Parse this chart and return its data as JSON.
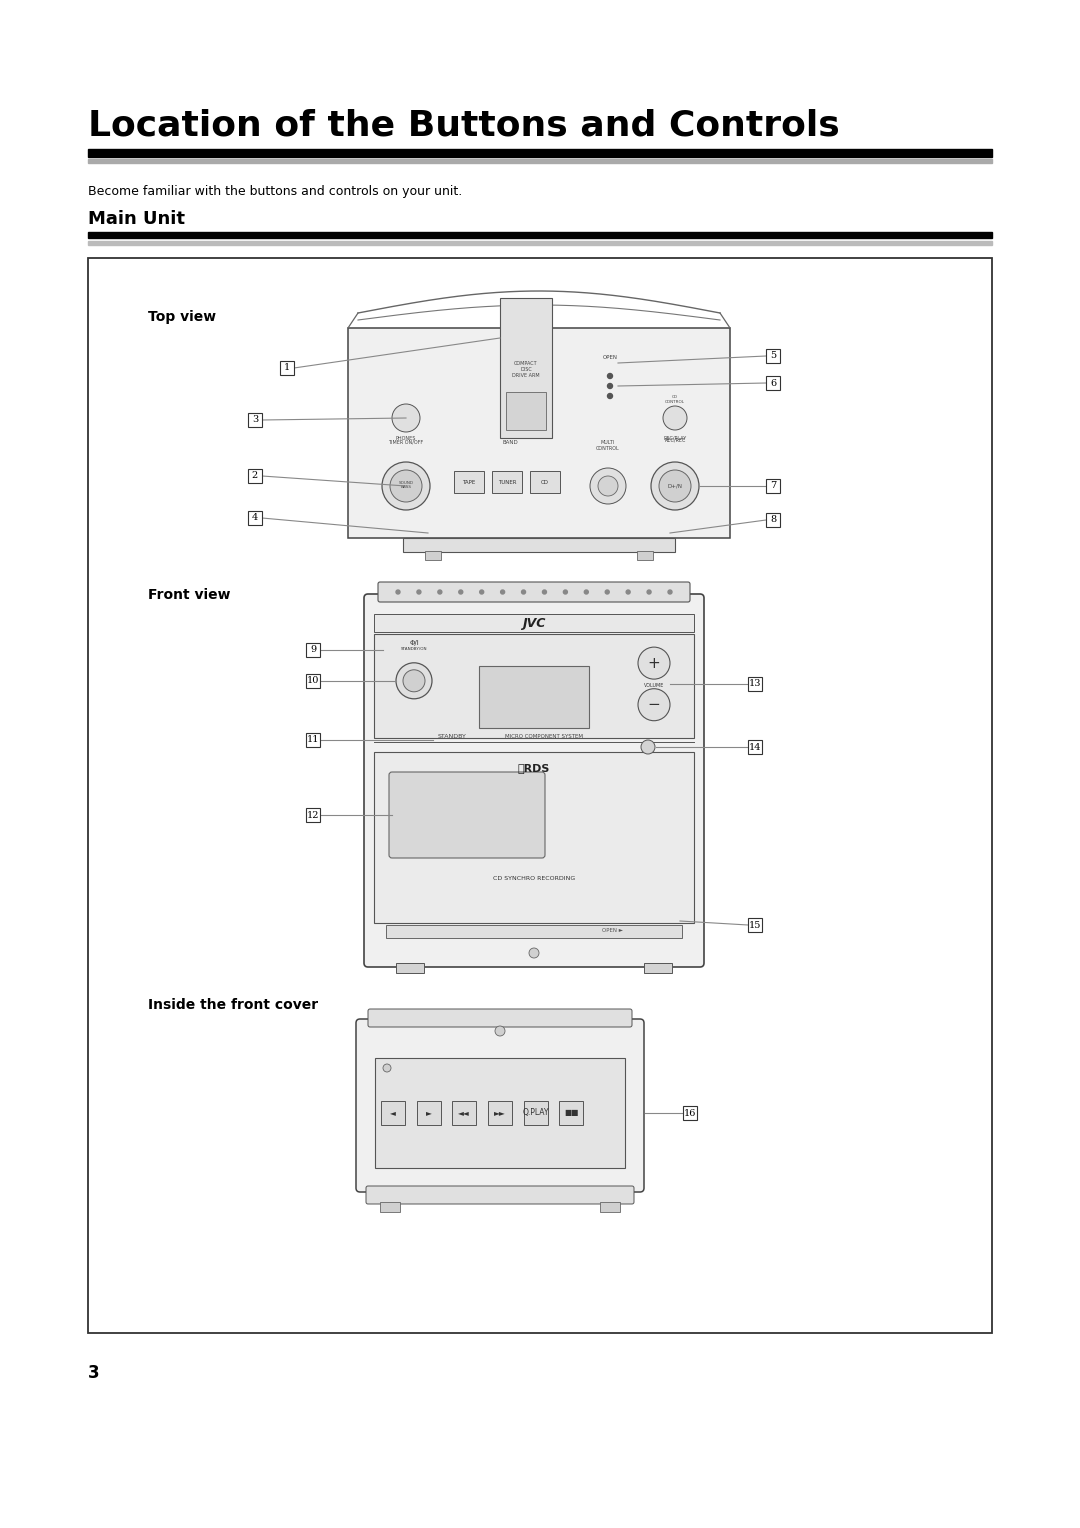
{
  "title": "Location of the Buttons and Controls",
  "subtitle": "Become familiar with the buttons and controls on your unit.",
  "section_title": "Main Unit",
  "page_number": "3",
  "bg": "#ffffff",
  "text_color": "#000000",
  "top_view_label": "Top view",
  "front_view_label": "Front view",
  "inside_label": "Inside the front cover",
  "line_color": "#555555",
  "body_fill": "#f2f2f2",
  "body_edge": "#444444",
  "label_bg": "#ffffff",
  "label_edge": "#333333"
}
